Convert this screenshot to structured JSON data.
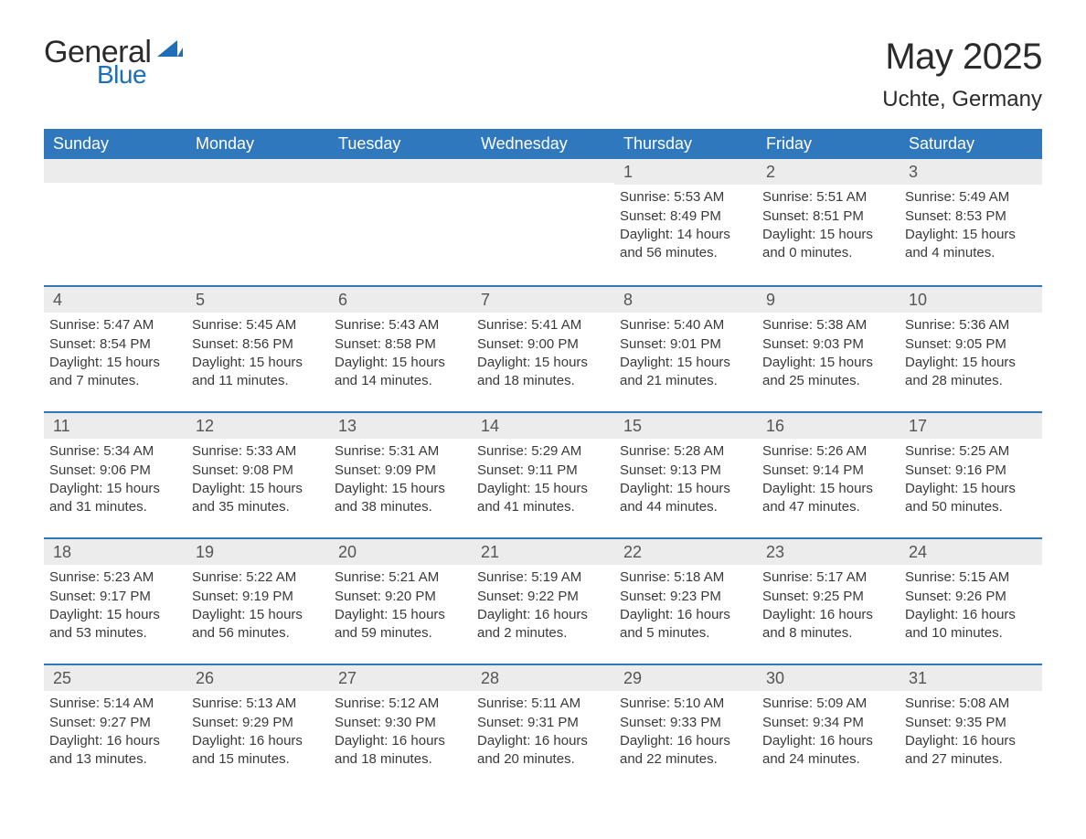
{
  "logo": {
    "general": "General",
    "blue": "Blue",
    "tri_color": "#1e6fb8"
  },
  "title": "May 2025",
  "location": "Uchte, Germany",
  "colors": {
    "header_bg": "#2f78bd",
    "header_text": "#ffffff",
    "daynum_bg": "#ececec",
    "daynum_border": "#2f78bd",
    "body_text": "#3a3a3a",
    "page_bg": "#ffffff"
  },
  "day_headers": [
    "Sunday",
    "Monday",
    "Tuesday",
    "Wednesday",
    "Thursday",
    "Friday",
    "Saturday"
  ],
  "weeks": [
    [
      {
        "blank": true
      },
      {
        "blank": true
      },
      {
        "blank": true
      },
      {
        "blank": true
      },
      {
        "day": "1",
        "sunrise": "Sunrise: 5:53 AM",
        "sunset": "Sunset: 8:49 PM",
        "daylight": "Daylight: 14 hours and 56 minutes."
      },
      {
        "day": "2",
        "sunrise": "Sunrise: 5:51 AM",
        "sunset": "Sunset: 8:51 PM",
        "daylight": "Daylight: 15 hours and 0 minutes."
      },
      {
        "day": "3",
        "sunrise": "Sunrise: 5:49 AM",
        "sunset": "Sunset: 8:53 PM",
        "daylight": "Daylight: 15 hours and 4 minutes."
      }
    ],
    [
      {
        "day": "4",
        "sunrise": "Sunrise: 5:47 AM",
        "sunset": "Sunset: 8:54 PM",
        "daylight": "Daylight: 15 hours and 7 minutes."
      },
      {
        "day": "5",
        "sunrise": "Sunrise: 5:45 AM",
        "sunset": "Sunset: 8:56 PM",
        "daylight": "Daylight: 15 hours and 11 minutes."
      },
      {
        "day": "6",
        "sunrise": "Sunrise: 5:43 AM",
        "sunset": "Sunset: 8:58 PM",
        "daylight": "Daylight: 15 hours and 14 minutes."
      },
      {
        "day": "7",
        "sunrise": "Sunrise: 5:41 AM",
        "sunset": "Sunset: 9:00 PM",
        "daylight": "Daylight: 15 hours and 18 minutes."
      },
      {
        "day": "8",
        "sunrise": "Sunrise: 5:40 AM",
        "sunset": "Sunset: 9:01 PM",
        "daylight": "Daylight: 15 hours and 21 minutes."
      },
      {
        "day": "9",
        "sunrise": "Sunrise: 5:38 AM",
        "sunset": "Sunset: 9:03 PM",
        "daylight": "Daylight: 15 hours and 25 minutes."
      },
      {
        "day": "10",
        "sunrise": "Sunrise: 5:36 AM",
        "sunset": "Sunset: 9:05 PM",
        "daylight": "Daylight: 15 hours and 28 minutes."
      }
    ],
    [
      {
        "day": "11",
        "sunrise": "Sunrise: 5:34 AM",
        "sunset": "Sunset: 9:06 PM",
        "daylight": "Daylight: 15 hours and 31 minutes."
      },
      {
        "day": "12",
        "sunrise": "Sunrise: 5:33 AM",
        "sunset": "Sunset: 9:08 PM",
        "daylight": "Daylight: 15 hours and 35 minutes."
      },
      {
        "day": "13",
        "sunrise": "Sunrise: 5:31 AM",
        "sunset": "Sunset: 9:09 PM",
        "daylight": "Daylight: 15 hours and 38 minutes."
      },
      {
        "day": "14",
        "sunrise": "Sunrise: 5:29 AM",
        "sunset": "Sunset: 9:11 PM",
        "daylight": "Daylight: 15 hours and 41 minutes."
      },
      {
        "day": "15",
        "sunrise": "Sunrise: 5:28 AM",
        "sunset": "Sunset: 9:13 PM",
        "daylight": "Daylight: 15 hours and 44 minutes."
      },
      {
        "day": "16",
        "sunrise": "Sunrise: 5:26 AM",
        "sunset": "Sunset: 9:14 PM",
        "daylight": "Daylight: 15 hours and 47 minutes."
      },
      {
        "day": "17",
        "sunrise": "Sunrise: 5:25 AM",
        "sunset": "Sunset: 9:16 PM",
        "daylight": "Daylight: 15 hours and 50 minutes."
      }
    ],
    [
      {
        "day": "18",
        "sunrise": "Sunrise: 5:23 AM",
        "sunset": "Sunset: 9:17 PM",
        "daylight": "Daylight: 15 hours and 53 minutes."
      },
      {
        "day": "19",
        "sunrise": "Sunrise: 5:22 AM",
        "sunset": "Sunset: 9:19 PM",
        "daylight": "Daylight: 15 hours and 56 minutes."
      },
      {
        "day": "20",
        "sunrise": "Sunrise: 5:21 AM",
        "sunset": "Sunset: 9:20 PM",
        "daylight": "Daylight: 15 hours and 59 minutes."
      },
      {
        "day": "21",
        "sunrise": "Sunrise: 5:19 AM",
        "sunset": "Sunset: 9:22 PM",
        "daylight": "Daylight: 16 hours and 2 minutes."
      },
      {
        "day": "22",
        "sunrise": "Sunrise: 5:18 AM",
        "sunset": "Sunset: 9:23 PM",
        "daylight": "Daylight: 16 hours and 5 minutes."
      },
      {
        "day": "23",
        "sunrise": "Sunrise: 5:17 AM",
        "sunset": "Sunset: 9:25 PM",
        "daylight": "Daylight: 16 hours and 8 minutes."
      },
      {
        "day": "24",
        "sunrise": "Sunrise: 5:15 AM",
        "sunset": "Sunset: 9:26 PM",
        "daylight": "Daylight: 16 hours and 10 minutes."
      }
    ],
    [
      {
        "day": "25",
        "sunrise": "Sunrise: 5:14 AM",
        "sunset": "Sunset: 9:27 PM",
        "daylight": "Daylight: 16 hours and 13 minutes."
      },
      {
        "day": "26",
        "sunrise": "Sunrise: 5:13 AM",
        "sunset": "Sunset: 9:29 PM",
        "daylight": "Daylight: 16 hours and 15 minutes."
      },
      {
        "day": "27",
        "sunrise": "Sunrise: 5:12 AM",
        "sunset": "Sunset: 9:30 PM",
        "daylight": "Daylight: 16 hours and 18 minutes."
      },
      {
        "day": "28",
        "sunrise": "Sunrise: 5:11 AM",
        "sunset": "Sunset: 9:31 PM",
        "daylight": "Daylight: 16 hours and 20 minutes."
      },
      {
        "day": "29",
        "sunrise": "Sunrise: 5:10 AM",
        "sunset": "Sunset: 9:33 PM",
        "daylight": "Daylight: 16 hours and 22 minutes."
      },
      {
        "day": "30",
        "sunrise": "Sunrise: 5:09 AM",
        "sunset": "Sunset: 9:34 PM",
        "daylight": "Daylight: 16 hours and 24 minutes."
      },
      {
        "day": "31",
        "sunrise": "Sunrise: 5:08 AM",
        "sunset": "Sunset: 9:35 PM",
        "daylight": "Daylight: 16 hours and 27 minutes."
      }
    ]
  ]
}
